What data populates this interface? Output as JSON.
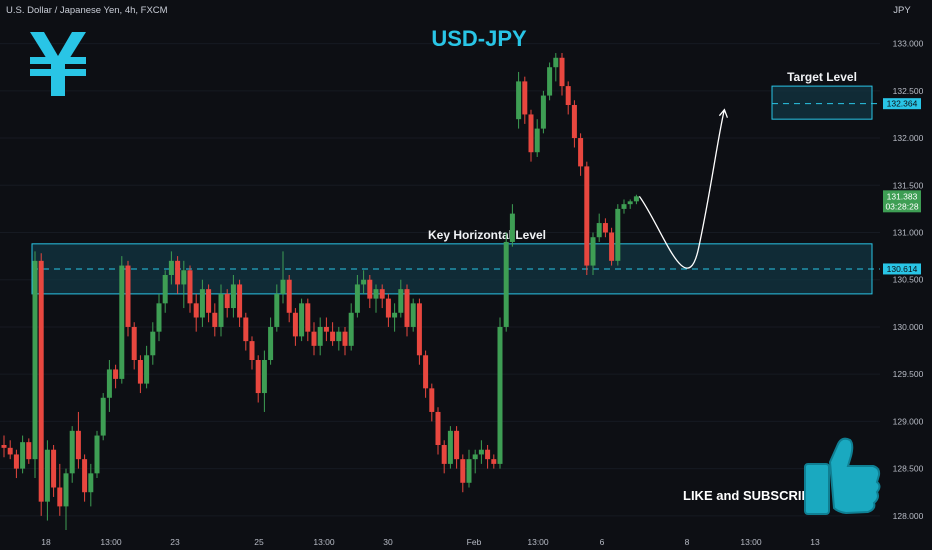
{
  "header": {
    "symbol_description": "U.S. Dollar / Japanese Yen, 4h, FXCM",
    "currency": "JPY"
  },
  "title": "USD-JPY",
  "colors": {
    "background": "#0d0f14",
    "up": "#3e9e54",
    "down": "#e8473f",
    "accent": "#29c5e6",
    "zone_fill": "#123a48",
    "zone_border": "#29c5e6"
  },
  "icons": {
    "logo": "yen-icon",
    "like": "thumbs-up-icon"
  },
  "annotations": {
    "key_level_label": "Key Horizontal Level",
    "target_label": "Target Level",
    "like_text": "LIKE and SUBSCRIBE"
  },
  "price_labels": {
    "target": "132.364",
    "current": "131.383",
    "countdown": "03:28:28",
    "key": "130.614"
  },
  "chart_data": {
    "type": "candlestick",
    "title": "USD-JPY",
    "instrument": "U.S. Dollar / Japanese Yen, 4h, FXCM",
    "ylim": [
      127.85,
      133.25
    ],
    "y_ticks": [
      "133.000",
      "132.500",
      "132.000",
      "131.500",
      "131.000",
      "130.500",
      "130.000",
      "129.500",
      "129.000",
      "128.500",
      "128.000"
    ],
    "x_ticks": [
      "18",
      "13:00",
      "23",
      "25",
      "13:00",
      "30",
      "Feb",
      "13:00",
      "6",
      "8",
      "13:00",
      "13"
    ],
    "key_zone": [
      130.35,
      130.88
    ],
    "key_level": 130.614,
    "target_zone": [
      132.2,
      132.55
    ],
    "target_level": 132.364,
    "current_price": 131.383,
    "candles": [
      [
        128.75,
        128.85,
        128.62,
        128.72
      ],
      [
        128.72,
        128.8,
        128.6,
        128.65
      ],
      [
        128.65,
        128.7,
        128.4,
        128.5
      ],
      [
        128.5,
        128.85,
        128.45,
        128.78
      ],
      [
        128.78,
        128.82,
        128.55,
        128.6
      ],
      [
        128.6,
        130.8,
        128.4,
        130.7
      ],
      [
        130.7,
        130.78,
        128.0,
        128.15
      ],
      [
        128.15,
        128.8,
        127.95,
        128.7
      ],
      [
        128.7,
        128.75,
        128.2,
        128.3
      ],
      [
        128.3,
        128.55,
        128.0,
        128.1
      ],
      [
        128.1,
        128.5,
        127.85,
        128.45
      ],
      [
        128.45,
        128.95,
        128.35,
        128.9
      ],
      [
        128.9,
        129.1,
        128.5,
        128.6
      ],
      [
        128.6,
        128.65,
        128.15,
        128.25
      ],
      [
        128.25,
        128.55,
        128.1,
        128.45
      ],
      [
        128.45,
        128.9,
        128.4,
        128.85
      ],
      [
        128.85,
        129.3,
        128.8,
        129.25
      ],
      [
        129.25,
        129.65,
        129.1,
        129.55
      ],
      [
        129.55,
        129.6,
        129.35,
        129.45
      ],
      [
        129.45,
        130.75,
        129.4,
        130.65
      ],
      [
        130.65,
        130.7,
        129.9,
        130.0
      ],
      [
        130.0,
        130.05,
        129.55,
        129.65
      ],
      [
        129.65,
        129.7,
        129.3,
        129.4
      ],
      [
        129.4,
        129.8,
        129.35,
        129.7
      ],
      [
        129.7,
        130.05,
        129.6,
        129.95
      ],
      [
        129.95,
        130.35,
        129.85,
        130.25
      ],
      [
        130.25,
        130.6,
        130.15,
        130.55
      ],
      [
        130.55,
        130.8,
        130.45,
        130.7
      ],
      [
        130.7,
        130.75,
        130.35,
        130.45
      ],
      [
        130.45,
        130.7,
        130.2,
        130.6
      ],
      [
        130.6,
        130.65,
        130.15,
        130.25
      ],
      [
        130.25,
        130.35,
        129.95,
        130.1
      ],
      [
        130.1,
        130.5,
        130.0,
        130.4
      ],
      [
        130.4,
        130.45,
        130.05,
        130.15
      ],
      [
        130.15,
        130.25,
        129.9,
        130.0
      ],
      [
        130.0,
        130.45,
        129.9,
        130.35
      ],
      [
        130.35,
        130.4,
        130.1,
        130.2
      ],
      [
        130.2,
        130.55,
        130.1,
        130.45
      ],
      [
        130.45,
        130.5,
        130.0,
        130.1
      ],
      [
        130.1,
        130.15,
        129.75,
        129.85
      ],
      [
        129.85,
        129.9,
        129.55,
        129.65
      ],
      [
        129.65,
        129.7,
        129.2,
        129.3
      ],
      [
        129.3,
        129.75,
        129.1,
        129.65
      ],
      [
        129.65,
        130.1,
        129.6,
        130.0
      ],
      [
        130.0,
        130.45,
        129.95,
        130.35
      ],
      [
        130.35,
        130.8,
        130.25,
        130.5
      ],
      [
        130.5,
        130.55,
        130.05,
        130.15
      ],
      [
        130.15,
        130.2,
        129.8,
        129.9
      ],
      [
        129.9,
        130.3,
        129.85,
        130.25
      ],
      [
        130.25,
        130.3,
        129.85,
        129.95
      ],
      [
        129.95,
        130.05,
        129.7,
        129.8
      ],
      [
        129.8,
        130.1,
        129.7,
        130.0
      ],
      [
        130.0,
        130.1,
        129.85,
        129.95
      ],
      [
        129.95,
        130.05,
        129.8,
        129.85
      ],
      [
        129.85,
        130.0,
        129.75,
        129.95
      ],
      [
        129.95,
        130.0,
        129.7,
        129.8
      ],
      [
        129.8,
        130.25,
        129.75,
        130.15
      ],
      [
        130.15,
        130.55,
        130.1,
        130.45
      ],
      [
        130.45,
        130.6,
        130.35,
        130.5
      ],
      [
        130.5,
        130.55,
        130.2,
        130.3
      ],
      [
        130.3,
        130.45,
        130.15,
        130.4
      ],
      [
        130.4,
        130.45,
        130.2,
        130.3
      ],
      [
        130.3,
        130.35,
        130.0,
        130.1
      ],
      [
        130.1,
        130.25,
        129.95,
        130.15
      ],
      [
        130.15,
        130.5,
        130.1,
        130.4
      ],
      [
        130.4,
        130.45,
        129.9,
        130.0
      ],
      [
        130.0,
        130.3,
        129.95,
        130.25
      ],
      [
        130.25,
        130.3,
        129.6,
        129.7
      ],
      [
        129.7,
        129.75,
        129.25,
        129.35
      ],
      [
        129.35,
        129.4,
        129.0,
        129.1
      ],
      [
        129.1,
        129.15,
        128.65,
        128.75
      ],
      [
        128.75,
        128.8,
        128.45,
        128.55
      ],
      [
        128.55,
        128.95,
        128.5,
        128.9
      ],
      [
        128.9,
        128.95,
        128.5,
        128.6
      ],
      [
        128.6,
        128.65,
        128.25,
        128.35
      ],
      [
        128.35,
        128.7,
        128.3,
        128.6
      ],
      [
        128.6,
        128.7,
        128.45,
        128.65
      ],
      [
        128.65,
        128.8,
        128.55,
        128.7
      ],
      [
        128.7,
        128.75,
        128.5,
        128.6
      ],
      [
        128.6,
        128.65,
        128.5,
        128.55
      ],
      [
        128.55,
        130.1,
        128.5,
        130.0
      ],
      [
        130.0,
        131.0,
        129.95,
        130.9
      ],
      [
        130.9,
        131.3,
        130.85,
        131.2
      ],
      [
        132.2,
        132.7,
        132.1,
        132.6
      ],
      [
        132.6,
        132.65,
        132.15,
        132.25
      ],
      [
        132.25,
        132.3,
        131.75,
        131.85
      ],
      [
        131.85,
        132.2,
        131.8,
        132.1
      ],
      [
        132.1,
        132.5,
        132.05,
        132.45
      ],
      [
        132.45,
        132.8,
        132.4,
        132.75
      ],
      [
        132.75,
        132.9,
        132.6,
        132.85
      ],
      [
        132.85,
        132.9,
        132.45,
        132.55
      ],
      [
        132.55,
        132.6,
        132.25,
        132.35
      ],
      [
        132.35,
        132.4,
        131.9,
        132.0
      ],
      [
        132.0,
        132.05,
        131.6,
        131.7
      ],
      [
        131.7,
        131.75,
        130.55,
        130.65
      ],
      [
        130.65,
        131.0,
        130.55,
        130.95
      ],
      [
        130.95,
        131.2,
        130.9,
        131.1
      ],
      [
        131.1,
        131.15,
        130.95,
        131.0
      ],
      [
        131.0,
        131.05,
        130.65,
        130.7
      ],
      [
        130.7,
        131.3,
        130.65,
        131.25
      ],
      [
        131.25,
        131.35,
        131.2,
        131.3
      ],
      [
        131.3,
        131.35,
        131.25,
        131.33
      ],
      [
        131.33,
        131.4,
        131.3,
        131.383
      ]
    ],
    "projection": [
      131.383,
      130.72,
      132.364
    ]
  }
}
